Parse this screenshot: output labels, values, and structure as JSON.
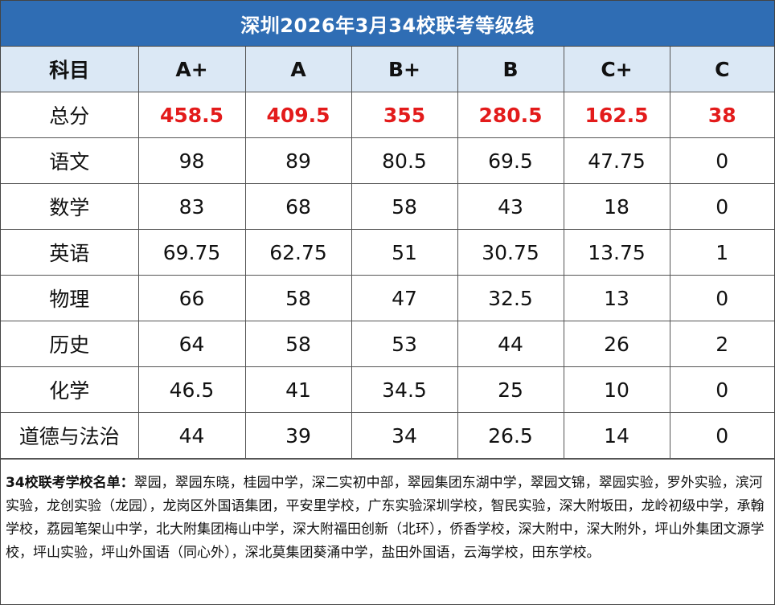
{
  "title": "深圳2026年3月34校联考等级线",
  "table": {
    "headers": [
      "科目",
      "A+",
      "A",
      "B+",
      "B",
      "C+",
      "C"
    ],
    "total_row": {
      "subject": "总分",
      "values": [
        "458.5",
        "409.5",
        "355",
        "280.5",
        "162.5",
        "38"
      ]
    },
    "rows": [
      {
        "subject": "语文",
        "values": [
          "98",
          "89",
          "80.5",
          "69.5",
          "47.75",
          "0"
        ]
      },
      {
        "subject": "数学",
        "values": [
          "83",
          "68",
          "58",
          "43",
          "18",
          "0"
        ]
      },
      {
        "subject": "英语",
        "values": [
          "69.75",
          "62.75",
          "51",
          "30.75",
          "13.75",
          "1"
        ]
      },
      {
        "subject": "物理",
        "values": [
          "66",
          "58",
          "47",
          "32.5",
          "13",
          "0"
        ]
      },
      {
        "subject": "历史",
        "values": [
          "64",
          "58",
          "53",
          "44",
          "26",
          "2"
        ]
      },
      {
        "subject": "化学",
        "values": [
          "46.5",
          "41",
          "34.5",
          "25",
          "10",
          "0"
        ]
      },
      {
        "subject": "道德与法治",
        "values": [
          "44",
          "39",
          "34",
          "26.5",
          "14",
          "0"
        ]
      }
    ]
  },
  "notes": {
    "label": "34校联考学校名单：",
    "text": "翠园，翠园东晓，桂园中学，深二实初中部，翠园集团东湖中学，翠园文锦，翠园实验，罗外实验，滨河实验，龙创实验（龙园），龙岗区外国语集团，平安里学校，广东实验深圳学校，智民实验，深大附坂田，龙岭初级中学，承翰学校，荔园笔架山中学，北大附集团梅山中学，深大附福田创新（北环），侨香学校，深大附中，深大附外，坪山外集团文源学校，坪山实验，坪山外国语（同心外），深北莫集团葵涌中学，盐田外国语，云海学校，田东学校。"
  },
  "colors": {
    "title_background": "#2f6db4",
    "header_background": "#dbe8f5",
    "total_text": "#e31b1b"
  }
}
